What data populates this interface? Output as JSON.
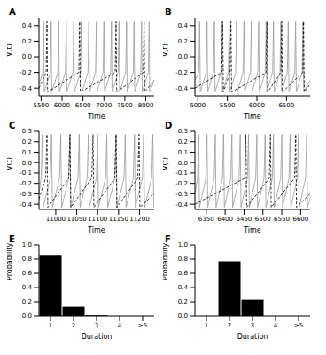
{
  "chart_data": [
    {
      "type": "line",
      "title": "A",
      "x_label": "Time",
      "y_label": "V(t)",
      "xlim": [
        5450,
        8200
      ],
      "xticks": [
        5500,
        6000,
        6500,
        7000,
        7500,
        8000
      ],
      "ylim": [
        -0.5,
        0.5
      ],
      "yticks": [
        -0.4,
        -0.2,
        {
          "value": 0,
          "label": "0.0"
        },
        0.2,
        0.4
      ],
      "series": [
        {
          "color": "#999999",
          "line_style": "solid",
          "x": [
            5450,
            5540,
            5560,
            5575,
            5720,
            5740,
            5755,
            5900,
            5920,
            5935,
            6080,
            6100,
            6115,
            6260,
            6280,
            6295,
            6440,
            6460,
            6475,
            6620,
            6640,
            6655,
            6800,
            6820,
            6835,
            6980,
            7000,
            7015,
            7160,
            7180,
            7195,
            7340,
            7360,
            7375,
            7520,
            7540,
            7555,
            7700,
            7720,
            7735,
            7880,
            7900,
            7915,
            8060,
            8080,
            8095,
            8200
          ],
          "values": [
            -0.35,
            -0.2,
            0.45,
            -0.45,
            -0.2,
            0.45,
            -0.45,
            -0.2,
            0.45,
            -0.45,
            -0.2,
            0.45,
            -0.45,
            -0.2,
            0.45,
            -0.45,
            -0.2,
            0.45,
            -0.45,
            -0.2,
            0.45,
            -0.45,
            -0.2,
            0.45,
            -0.45,
            -0.2,
            0.45,
            -0.45,
            -0.2,
            0.45,
            -0.45,
            -0.2,
            0.45,
            -0.45,
            -0.2,
            0.45,
            -0.45,
            -0.2,
            0.45,
            -0.45,
            -0.2,
            0.45,
            -0.45,
            -0.2,
            0.45,
            -0.45,
            -0.3
          ]
        },
        {
          "color": "#000000",
          "line_style": "dashed",
          "x": [
            5450,
            5620,
            5640,
            5655,
            6400,
            6420,
            6435,
            7270,
            7290,
            7305,
            7940,
            7960,
            7975,
            8200
          ],
          "values": [
            -0.4,
            -0.2,
            0.45,
            -0.45,
            -0.2,
            0.45,
            -0.45,
            -0.2,
            0.45,
            -0.45,
            -0.2,
            0.45,
            -0.45,
            -0.3
          ]
        }
      ]
    },
    {
      "type": "line",
      "title": "B",
      "x_label": "Time",
      "y_label": "V(t)",
      "xlim": [
        4950,
        6900
      ],
      "xticks": [
        5000,
        5500,
        6000,
        6500
      ],
      "ylim": [
        -0.5,
        0.5
      ],
      "yticks": [
        -0.4,
        -0.2,
        {
          "value": 0,
          "label": "0.0"
        },
        0.2,
        0.4
      ],
      "series": [
        {
          "color": "#999999",
          "line_style": "solid",
          "x": [
            4950,
            5015,
            5030,
            5042,
            5140,
            5155,
            5167,
            5265,
            5280,
            5292,
            5390,
            5405,
            5417,
            5515,
            5530,
            5542,
            5640,
            5655,
            5667,
            5765,
            5780,
            5792,
            5890,
            5905,
            5917,
            6015,
            6030,
            6042,
            6140,
            6155,
            6167,
            6265,
            6280,
            6292,
            6390,
            6405,
            6417,
            6515,
            6530,
            6542,
            6640,
            6655,
            6667,
            6765,
            6780,
            6792,
            6900
          ],
          "values": [
            -0.3,
            -0.2,
            0.45,
            -0.45,
            -0.2,
            0.45,
            -0.45,
            -0.2,
            0.45,
            -0.45,
            -0.2,
            0.45,
            -0.45,
            -0.2,
            0.45,
            -0.45,
            -0.2,
            0.45,
            -0.45,
            -0.2,
            0.45,
            -0.45,
            -0.2,
            0.45,
            -0.45,
            -0.2,
            0.45,
            -0.45,
            -0.2,
            0.45,
            -0.45,
            -0.2,
            0.45,
            -0.45,
            -0.2,
            0.45,
            -0.45,
            -0.2,
            0.45,
            -0.45,
            -0.2,
            0.45,
            -0.45,
            -0.2,
            0.45,
            -0.45,
            -0.3
          ]
        },
        {
          "color": "#000000",
          "line_style": "dashed",
          "x": [
            4950,
            5405,
            5420,
            5432,
            5545,
            5560,
            5572,
            6155,
            6170,
            6182,
            6405,
            6420,
            6432,
            6775,
            6790,
            6802,
            6900
          ],
          "values": [
            -0.4,
            -0.2,
            0.45,
            -0.45,
            -0.2,
            0.45,
            -0.45,
            -0.2,
            0.45,
            -0.45,
            -0.2,
            0.45,
            -0.45,
            -0.2,
            0.45,
            -0.45,
            -0.35
          ]
        }
      ]
    },
    {
      "type": "line",
      "title": "C",
      "x_label": "Time",
      "y_label": "V(t)",
      "xlim": [
        10960,
        11235
      ],
      "xticks": [
        11000,
        11050,
        11100,
        11150,
        11200
      ],
      "ylim": [
        -0.45,
        0.3
      ],
      "yticks": [
        -0.4,
        -0.3,
        -0.2,
        -0.1,
        {
          "value": 0,
          "label": "0.0"
        },
        0.1,
        0.2,
        0.3
      ],
      "series": [
        {
          "color": "#999999",
          "line_style": "solid",
          "x": [
            10960,
            10965,
            10968,
            10970,
            10987,
            10990,
            10992,
            11009,
            11012,
            11014,
            11031,
            11034,
            11036,
            11053,
            11056,
            11058,
            11075,
            11078,
            11080,
            11097,
            11100,
            11102,
            11119,
            11122,
            11124,
            11141,
            11144,
            11146,
            11163,
            11166,
            11168,
            11185,
            11188,
            11190,
            11207,
            11210,
            11212,
            11229,
            11232,
            11234
          ],
          "values": [
            -0.3,
            -0.15,
            0.27,
            -0.43,
            -0.15,
            0.27,
            -0.43,
            -0.15,
            0.27,
            -0.43,
            -0.15,
            0.27,
            -0.43,
            -0.15,
            0.27,
            -0.43,
            -0.15,
            0.27,
            -0.43,
            -0.15,
            0.27,
            -0.43,
            -0.15,
            0.27,
            -0.43,
            -0.15,
            0.27,
            -0.43,
            -0.15,
            0.27,
            -0.43,
            -0.15,
            0.27,
            -0.43,
            -0.15,
            0.27,
            -0.43,
            -0.15,
            0.27,
            -0.43
          ]
        },
        {
          "color": "#000000",
          "line_style": "dashed",
          "x": [
            10960,
            10976,
            10979,
            10981,
            11031,
            11034,
            11036,
            11086,
            11089,
            11091,
            11141,
            11144,
            11146,
            11196,
            11199,
            11201,
            11235
          ],
          "values": [
            -0.35,
            -0.15,
            0.27,
            -0.43,
            -0.15,
            0.27,
            -0.43,
            -0.15,
            0.27,
            -0.43,
            -0.15,
            0.27,
            -0.43,
            -0.15,
            0.27,
            -0.43,
            -0.3
          ]
        }
      ]
    },
    {
      "type": "line",
      "title": "D",
      "x_label": "Time",
      "y_label": "V(t)",
      "xlim": [
        6320,
        6625
      ],
      "xticks": [
        6350,
        6400,
        6450,
        6500,
        6550,
        6600
      ],
      "ylim": [
        -0.45,
        0.3
      ],
      "yticks": [
        -0.4,
        -0.3,
        -0.2,
        -0.1,
        {
          "value": 0,
          "label": "0.0"
        },
        0.1,
        0.2,
        0.3
      ],
      "series": [
        {
          "color": "#999999",
          "line_style": "solid",
          "x": [
            6320,
            6327,
            6330,
            6332,
            6349,
            6352,
            6354,
            6371,
            6374,
            6376,
            6393,
            6396,
            6398,
            6415,
            6418,
            6420,
            6437,
            6440,
            6442,
            6459,
            6462,
            6464,
            6481,
            6484,
            6486,
            6503,
            6506,
            6508,
            6525,
            6528,
            6530,
            6547,
            6550,
            6552,
            6569,
            6572,
            6574,
            6591,
            6594,
            6596,
            6613,
            6616,
            6618,
            6625
          ],
          "values": [
            -0.3,
            -0.15,
            0.27,
            -0.43,
            -0.15,
            0.27,
            -0.43,
            -0.15,
            0.27,
            -0.43,
            -0.15,
            0.27,
            -0.43,
            -0.15,
            0.27,
            -0.43,
            -0.15,
            0.27,
            -0.43,
            -0.15,
            0.27,
            -0.43,
            -0.15,
            0.27,
            -0.43,
            -0.15,
            0.27,
            -0.43,
            -0.15,
            0.27,
            -0.43,
            -0.15,
            0.27,
            -0.43,
            -0.15,
            0.27,
            -0.43,
            -0.15,
            0.27,
            -0.43,
            -0.15,
            0.27,
            -0.43,
            -0.35
          ]
        },
        {
          "color": "#000000",
          "line_style": "dashed",
          "x": [
            6320,
            6452,
            6455,
            6457,
            6517,
            6520,
            6522,
            6584,
            6587,
            6589,
            6625
          ],
          "values": [
            -0.4,
            -0.15,
            0.27,
            -0.43,
            -0.15,
            0.27,
            -0.43,
            -0.15,
            0.27,
            -0.43,
            -0.3
          ]
        }
      ]
    },
    {
      "type": "bar",
      "title": "E",
      "x_label": "Duration",
      "y_label": "Probability",
      "categories": [
        "1",
        "2",
        "3",
        "4",
        "≥5"
      ],
      "values": [
        0.86,
        0.13,
        0.01,
        0,
        0
      ],
      "color": "#000000",
      "ylim": [
        0,
        1
      ],
      "yticks": [
        {
          "value": 0,
          "label": "0.0"
        },
        0.2,
        0.4,
        0.6,
        0.8,
        {
          "value": 1,
          "label": "1.0"
        }
      ]
    },
    {
      "type": "bar",
      "title": "F",
      "x_label": "Duration",
      "y_label": "Probability",
      "categories": [
        "1",
        "2",
        "3",
        "4",
        "≥5"
      ],
      "values": [
        0,
        0.77,
        0.23,
        0,
        0
      ],
      "color": "#000000",
      "ylim": [
        0,
        1
      ],
      "yticks": [
        {
          "value": 0,
          "label": "0.0"
        },
        0.2,
        0.4,
        0.6,
        0.8,
        {
          "value": 1,
          "label": "1.0"
        }
      ]
    }
  ]
}
